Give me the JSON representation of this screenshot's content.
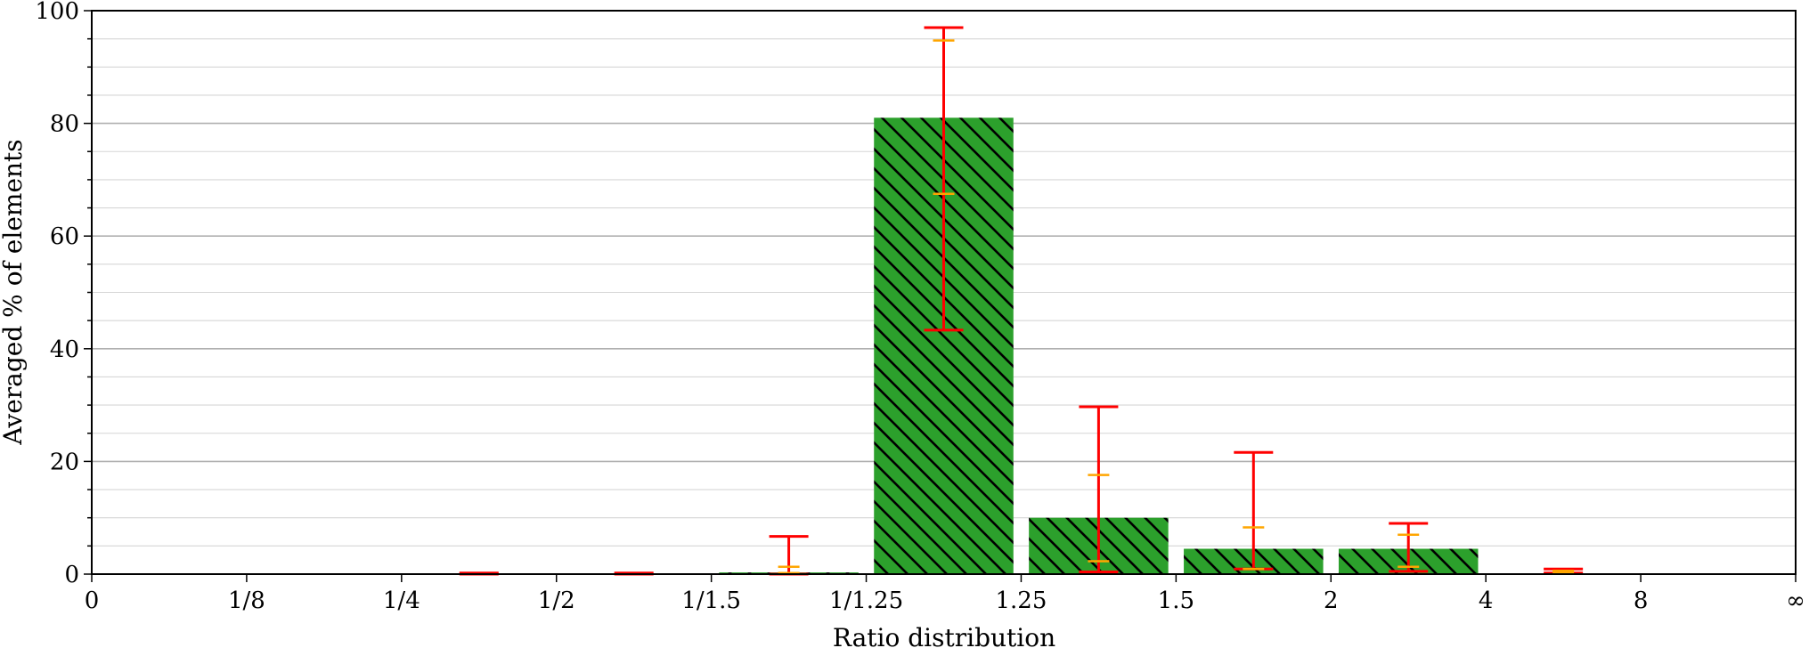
{
  "chart_data": {
    "type": "bar",
    "title": "",
    "xlabel": "Ratio distribution",
    "ylabel": "Averaged % of elements",
    "ylim": [
      0,
      100
    ],
    "y_ticks": [
      0,
      20,
      40,
      60,
      80,
      100
    ],
    "y_minor_step": 5,
    "grid": true,
    "x_tick_labels": [
      "0",
      "1/8",
      "1/4",
      "1/2",
      "1/1.5",
      "1/1.25",
      "1.25",
      "1.5",
      "2",
      "4",
      "8",
      "∞"
    ],
    "categories": [
      "0–1/8",
      "1/8–1/4",
      "1/4–1/2",
      "1/2–1/1.5",
      "1/1.5–1/1.25",
      "1/1.25–1.25",
      "1.25–1.5",
      "1.5–2",
      "2–4",
      "4–8",
      "8–∞"
    ],
    "values": [
      0,
      0,
      0.1,
      0.1,
      0.3,
      81,
      10,
      4.5,
      4.5,
      0,
      0
    ],
    "error_max": [
      0,
      0,
      0.2,
      0.2,
      6.7,
      97,
      29.7,
      21.6,
      9,
      0.9,
      0
    ],
    "error_min": [
      0,
      0,
      0,
      0,
      0,
      43.3,
      0.4,
      0.9,
      0.5,
      0.2,
      0
    ],
    "error_upper_quartile": [
      0,
      0,
      0,
      0,
      1.3,
      94.7,
      17.6,
      8.3,
      7,
      0.6,
      0
    ],
    "error_lower_quartile": [
      0,
      0,
      0,
      0,
      0.2,
      67.5,
      2.3,
      0.9,
      1.3,
      0.3,
      0
    ],
    "colors": {
      "bar": "#2ca02c",
      "hatch": "#000000",
      "error_range": "#ff0000",
      "error_quartile": "#ffa500",
      "grid_major": "#b0b0b0",
      "grid_minor": "#d6d6d6"
    }
  }
}
